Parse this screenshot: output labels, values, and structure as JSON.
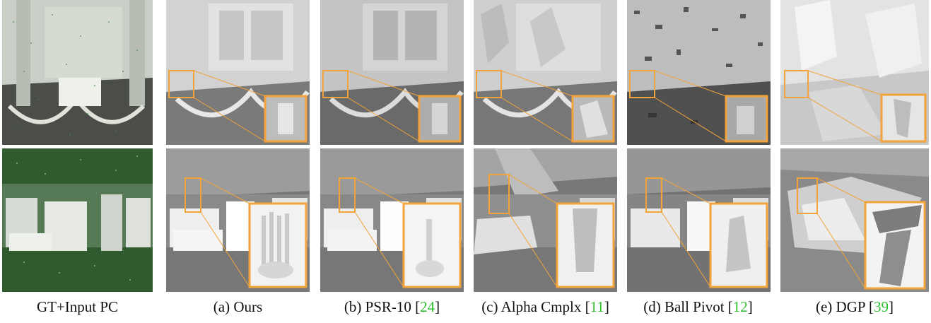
{
  "figure": {
    "captions": [
      {
        "label": "GT+Input PC",
        "ref": ""
      },
      {
        "label": "(a) Ours",
        "ref": ""
      },
      {
        "label": "(b) PSR-10 [",
        "ref": "24",
        "close": "]"
      },
      {
        "label": "(c) Alpha Cmplx [",
        "ref": "11",
        "close": "]"
      },
      {
        "label": "(d) Ball Pivot [",
        "ref": "12",
        "close": "]"
      },
      {
        "label": "(e) DGP [",
        "ref": "39",
        "close": "]"
      }
    ],
    "colors": {
      "zoom_box": "#f3a33a",
      "citation": "#2fbf2f",
      "point_cloud": "#3d8a3d"
    }
  }
}
